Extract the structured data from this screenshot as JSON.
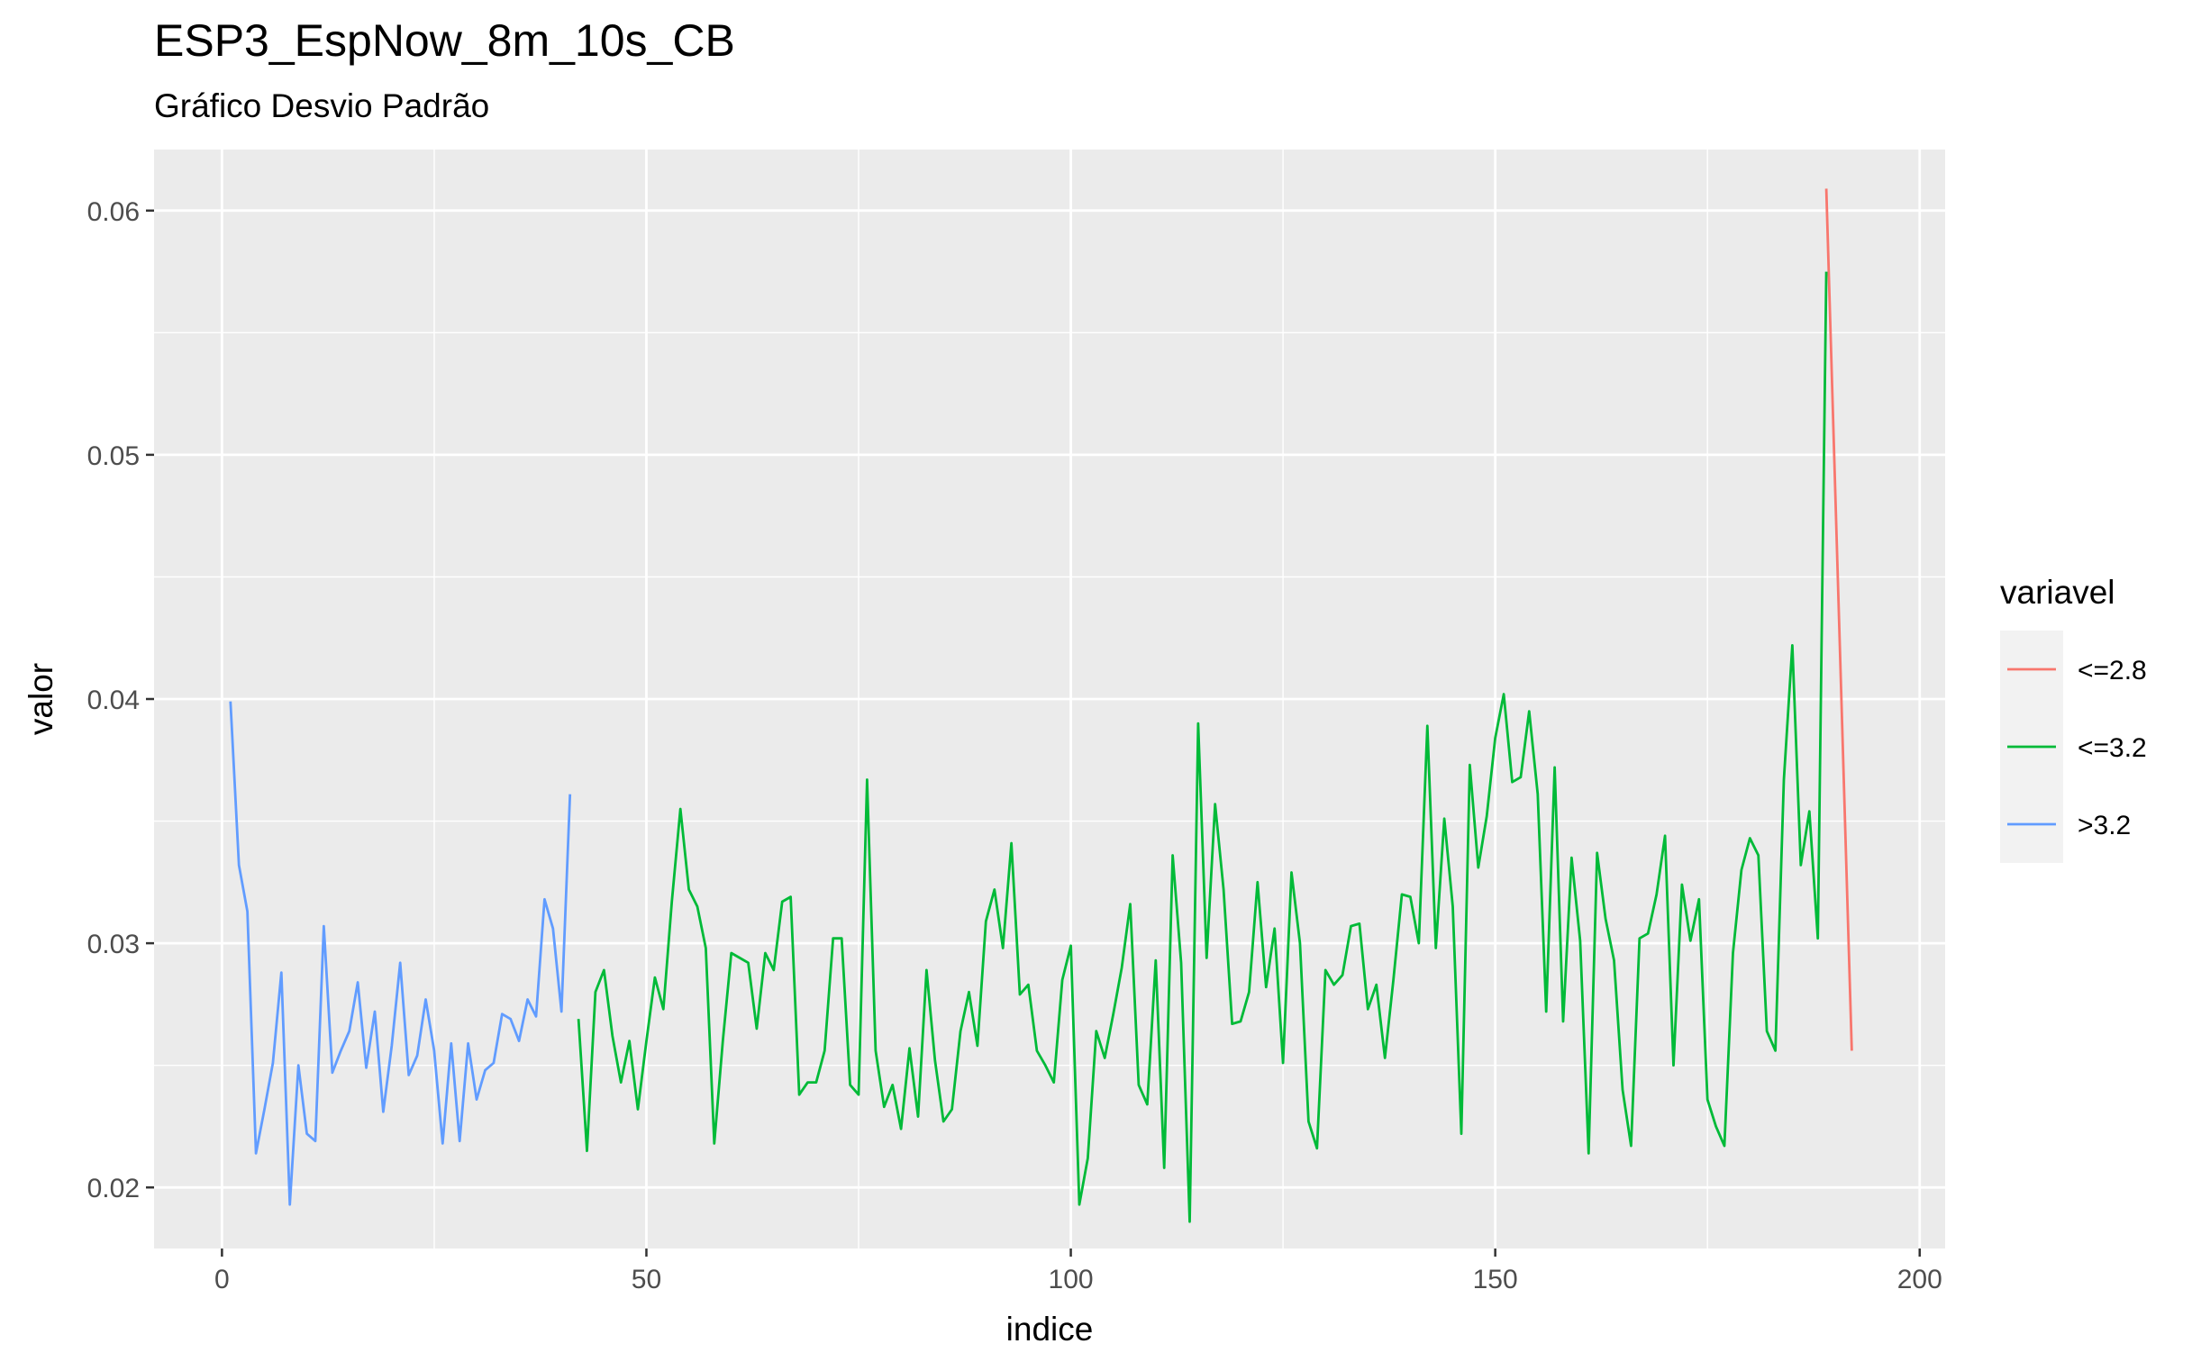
{
  "chart_data": {
    "type": "line",
    "title": "ESP3_EspNow_8m_10s_CB",
    "subtitle": "Gráfico Desvio Padrão",
    "xlabel": "indice",
    "ylabel": "valor",
    "xlim": [
      -8,
      203
    ],
    "ylim": [
      0.0175,
      0.0625
    ],
    "x_ticks": [
      0,
      50,
      100,
      150,
      200
    ],
    "x_tick_labels": [
      "0",
      "50",
      "100",
      "150",
      "200"
    ],
    "y_ticks": [
      0.02,
      0.03,
      0.04,
      0.05,
      0.06
    ],
    "y_tick_labels": [
      "0.02",
      "0.03",
      "0.04",
      "0.05",
      "0.06"
    ],
    "grid": true,
    "legend_title": "variavel",
    "legend_position": "right",
    "series": [
      {
        "name": "<=2.8",
        "color": "#F8766D",
        "x": [
          189,
          192
        ],
        "y": [
          0.0609,
          0.0256
        ]
      },
      {
        "name": "<=3.2",
        "color": "#00BA38",
        "x": [
          42,
          43,
          44,
          45,
          46,
          47,
          48,
          49,
          50,
          51,
          52,
          53,
          54,
          55,
          56,
          57,
          58,
          59,
          60,
          61,
          62,
          63,
          64,
          65,
          66,
          67,
          68,
          69,
          70,
          71,
          72,
          73,
          74,
          75,
          76,
          77,
          78,
          79,
          80,
          81,
          82,
          83,
          84,
          85,
          86,
          87,
          88,
          89,
          90,
          91,
          92,
          93,
          94,
          95,
          96,
          97,
          98,
          99,
          100,
          101,
          102,
          103,
          104,
          105,
          106,
          107,
          108,
          109,
          110,
          111,
          112,
          113,
          114,
          115,
          116,
          117,
          118,
          119,
          120,
          121,
          122,
          123,
          124,
          125,
          126,
          127,
          128,
          129,
          130,
          131,
          132,
          133,
          134,
          135,
          136,
          137,
          138,
          139,
          140,
          141,
          142,
          143,
          144,
          145,
          146,
          147,
          148,
          149,
          150,
          151,
          152,
          153,
          154,
          155,
          156,
          157,
          158,
          159,
          160,
          161,
          162,
          163,
          164,
          165,
          166,
          167,
          168,
          169,
          170,
          171,
          172,
          173,
          174,
          175,
          176,
          177,
          178,
          179,
          180,
          181,
          182,
          183,
          184,
          185,
          186,
          187,
          188,
          189
        ],
        "y": [
          0.0269,
          0.0215,
          0.028,
          0.0289,
          0.0262,
          0.0243,
          0.026,
          0.0232,
          0.026,
          0.0286,
          0.0273,
          0.0317,
          0.0355,
          0.0322,
          0.0315,
          0.0298,
          0.0218,
          0.026,
          0.0296,
          0.0294,
          0.0292,
          0.0265,
          0.0296,
          0.0289,
          0.0317,
          0.0319,
          0.0238,
          0.0243,
          0.0243,
          0.0256,
          0.0302,
          0.0302,
          0.0242,
          0.0238,
          0.0367,
          0.0256,
          0.0233,
          0.0242,
          0.0224,
          0.0257,
          0.0229,
          0.0289,
          0.0252,
          0.0227,
          0.0232,
          0.0264,
          0.028,
          0.0258,
          0.0309,
          0.0322,
          0.0298,
          0.0341,
          0.0279,
          0.0283,
          0.0256,
          0.025,
          0.0243,
          0.0285,
          0.0299,
          0.0193,
          0.0212,
          0.0264,
          0.0253,
          0.0271,
          0.029,
          0.0316,
          0.0242,
          0.0234,
          0.0293,
          0.0208,
          0.0336,
          0.0292,
          0.0186,
          0.039,
          0.0294,
          0.0357,
          0.0322,
          0.0267,
          0.0268,
          0.028,
          0.0325,
          0.0282,
          0.0306,
          0.0251,
          0.0329,
          0.03,
          0.0227,
          0.0216,
          0.0289,
          0.0283,
          0.0287,
          0.0307,
          0.0308,
          0.0273,
          0.0283,
          0.0253,
          0.0285,
          0.032,
          0.0319,
          0.03,
          0.0389,
          0.0298,
          0.0351,
          0.0315,
          0.0222,
          0.0373,
          0.0331,
          0.0352,
          0.0384,
          0.0402,
          0.0366,
          0.0368,
          0.0395,
          0.0361,
          0.0272,
          0.0372,
          0.0268,
          0.0335,
          0.0301,
          0.0214,
          0.0337,
          0.031,
          0.0293,
          0.024,
          0.0217,
          0.0302,
          0.0304,
          0.032,
          0.0344,
          0.025,
          0.0324,
          0.0301,
          0.0318,
          0.0236,
          0.0225,
          0.0217,
          0.0296,
          0.033,
          0.0343,
          0.0336,
          0.0264,
          0.0256,
          0.0367,
          0.0422,
          0.0332,
          0.0354,
          0.0302,
          0.0575
        ]
      },
      {
        "name": ">3.2",
        "color": "#619CFF",
        "x": [
          1,
          2,
          3,
          4,
          5,
          6,
          7,
          8,
          9,
          10,
          11,
          12,
          13,
          14,
          15,
          16,
          17,
          18,
          19,
          20,
          21,
          22,
          23,
          24,
          25,
          26,
          27,
          28,
          29,
          30,
          31,
          32,
          33,
          34,
          35,
          36,
          37,
          38,
          39,
          40,
          41
        ],
        "y": [
          0.0399,
          0.0332,
          0.0313,
          0.0214,
          0.0232,
          0.0251,
          0.0288,
          0.0193,
          0.025,
          0.0222,
          0.0219,
          0.0307,
          0.0247,
          0.0256,
          0.0264,
          0.0284,
          0.0249,
          0.0272,
          0.0231,
          0.0258,
          0.0292,
          0.0246,
          0.0254,
          0.0277,
          0.0256,
          0.0218,
          0.0259,
          0.0219,
          0.0259,
          0.0236,
          0.0248,
          0.0251,
          0.0271,
          0.0269,
          0.026,
          0.0277,
          0.027,
          0.0318,
          0.0306,
          0.0272,
          0.0361
        ]
      }
    ]
  }
}
